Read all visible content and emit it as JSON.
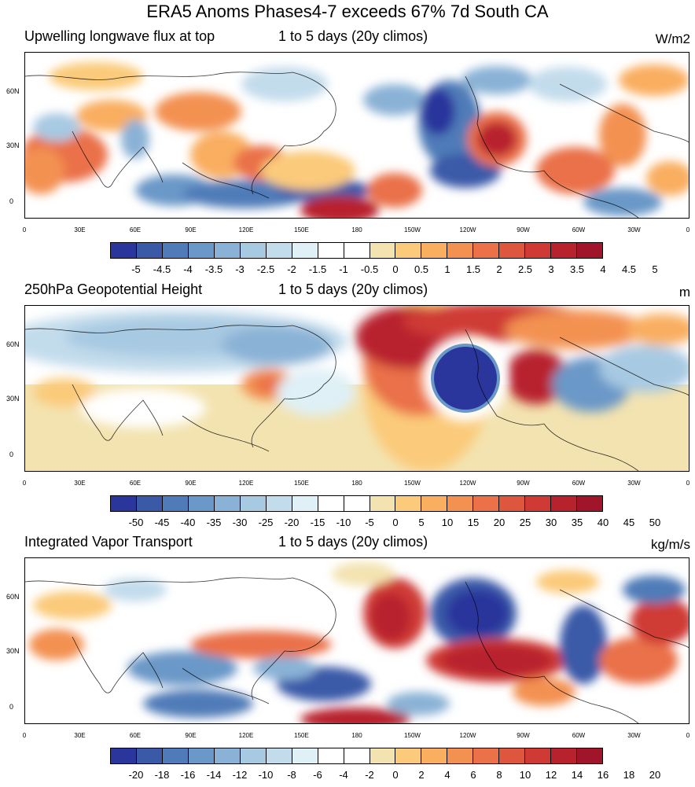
{
  "title": "ERA5 Anoms Phases4-7 exceeds 67% 7d South CA",
  "x_ticks": [
    "0",
    "30E",
    "60E",
    "90E",
    "120E",
    "150E",
    "180",
    "150W",
    "120W",
    "90W",
    "60W",
    "30W",
    "0"
  ],
  "y_ticks": [
    "60N",
    "30N",
    "0"
  ],
  "colors": [
    "#2b369c",
    "#3a5aa8",
    "#4f7bb8",
    "#6a98c8",
    "#8ab2d6",
    "#a7c9e2",
    "#c3dcec",
    "#dff0f6",
    "#ffffff",
    "#ffffff",
    "#f3e3b0",
    "#fbca7a",
    "#f9ae60",
    "#f39151",
    "#ea7148",
    "#df563f",
    "#cf3a35",
    "#b8222d",
    "#a0152a"
  ],
  "panels": [
    {
      "left": "Upwelling longwave flux at top",
      "center": "1 to 5 days (20y climos)",
      "units": "W/m2",
      "levels": [
        "-5",
        "-4.5",
        "-4",
        "-3.5",
        "-3",
        "-2.5",
        "-2",
        "-1.5",
        "-1",
        "-0.5",
        "0",
        "0.5",
        "1",
        "1.5",
        "2",
        "2.5",
        "3",
        "3.5",
        "4",
        "4.5",
        "5"
      ]
    },
    {
      "left": "250hPa Geopotential Height",
      "center": "1 to 5 days (20y climos)",
      "units": "m",
      "levels": [
        "-50",
        "-45",
        "-40",
        "-35",
        "-30",
        "-25",
        "-20",
        "-15",
        "-10",
        "-5",
        "0",
        "5",
        "10",
        "15",
        "20",
        "25",
        "30",
        "35",
        "40",
        "45",
        "50"
      ]
    },
    {
      "left": "Integrated Vapor Transport",
      "center": "1 to 5 days (20y climos)",
      "units": "kg/m/s",
      "levels": [
        "-20",
        "-18",
        "-16",
        "-14",
        "-12",
        "-10",
        "-8",
        "-6",
        "-4",
        "-2",
        "0",
        "2",
        "4",
        "6",
        "8",
        "10",
        "12",
        "14",
        "16",
        "18",
        "20"
      ]
    }
  ]
}
